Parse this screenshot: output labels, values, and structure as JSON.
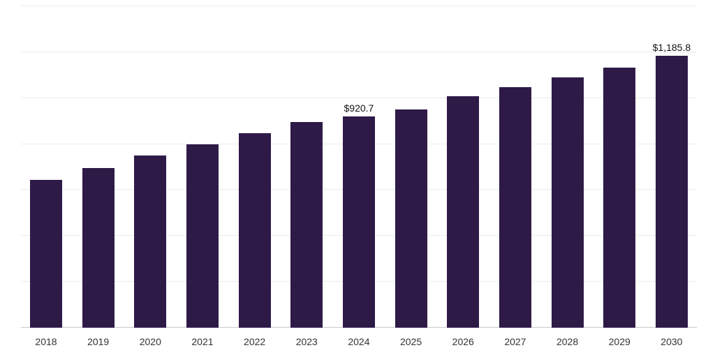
{
  "chart_data": {
    "type": "bar",
    "title": "",
    "xlabel": "",
    "ylabel": "",
    "categories": [
      "2018",
      "2019",
      "2020",
      "2021",
      "2022",
      "2023",
      "2024",
      "2025",
      "2026",
      "2027",
      "2028",
      "2029",
      "2030"
    ],
    "values": [
      645,
      695,
      750,
      800,
      848,
      895,
      920.7,
      950,
      1007,
      1048,
      1090,
      1132,
      1185.8
    ],
    "value_labels": {
      "2024": "$920.7",
      "2030": "$1,185.8"
    },
    "ylim": [
      0,
      1400
    ],
    "gridline_step": 200,
    "grid": "on",
    "legend": "none",
    "bar_color": "#2E1A47",
    "gridline_color": "#ebebeb",
    "axis_line_color": "#c9c9c9",
    "label_color": "#333333",
    "value_label_color": "#111111",
    "background_color": "#ffffff"
  }
}
